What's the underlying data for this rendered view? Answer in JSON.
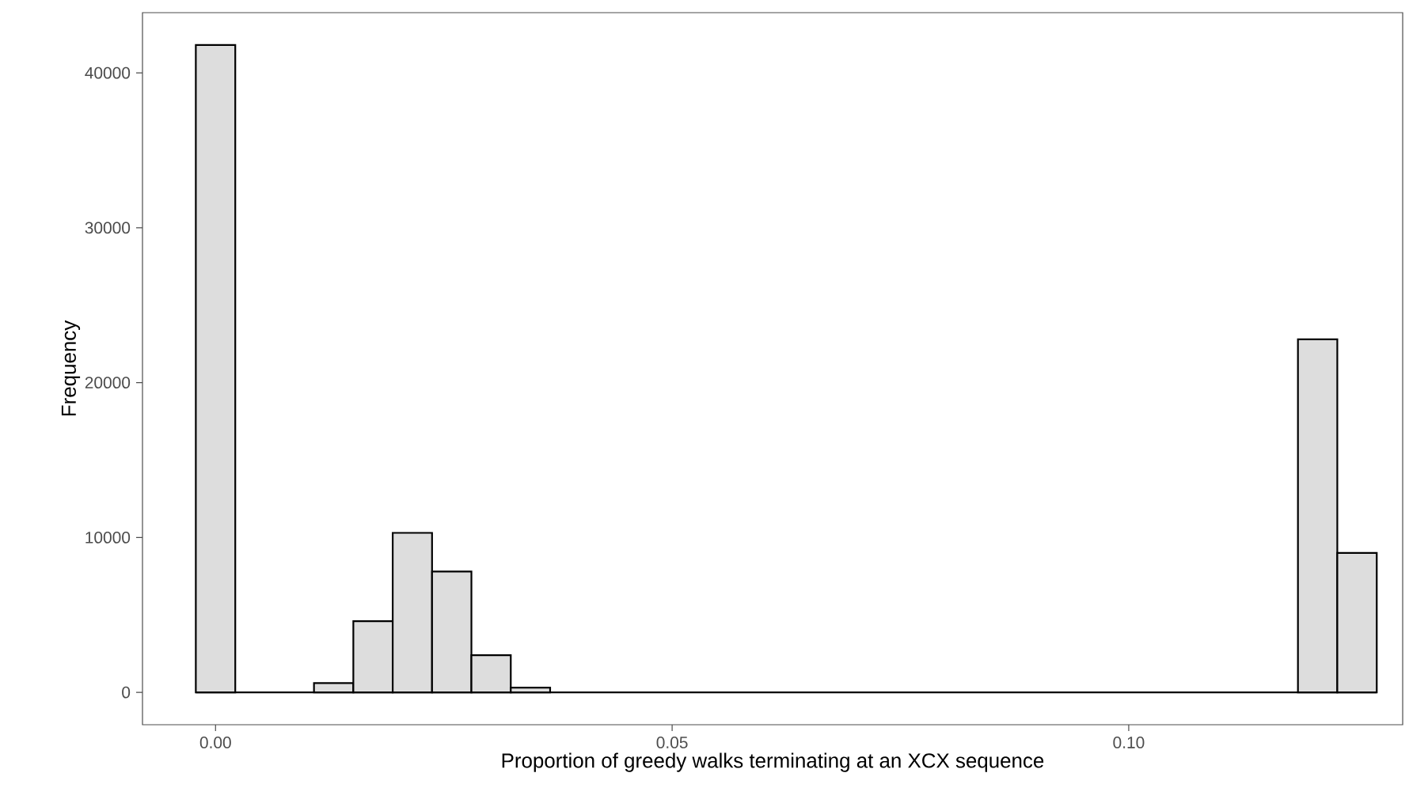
{
  "chart_data": {
    "type": "histogram",
    "xlabel": "Proportion of greedy walks terminating at an XCX sequence",
    "ylabel": "Frequency",
    "bins": [
      -0.00216,
      0.00216,
      0.00647,
      0.01078,
      0.01509,
      0.0194,
      0.02371,
      0.02802,
      0.03233,
      0.03664,
      0.04095,
      0.04526,
      0.04957,
      0.05388,
      0.05819,
      0.0625,
      0.06681,
      0.07112,
      0.07543,
      0.07974,
      0.08405,
      0.08836,
      0.09267,
      0.09698,
      0.10129,
      0.1056,
      0.10991,
      0.11422,
      0.11853,
      0.12284,
      0.12716
    ],
    "values": [
      41800,
      0,
      0,
      600,
      4600,
      10300,
      7800,
      2400,
      300,
      0,
      0,
      0,
      0,
      0,
      0,
      0,
      0,
      0,
      0,
      0,
      0,
      0,
      0,
      0,
      0,
      0,
      0,
      0,
      22800,
      9000
    ],
    "color": "#dddddd",
    "xlim": [
      -0.008,
      0.13
    ],
    "ylim": [
      -2090,
      43890
    ],
    "xticks": [
      {
        "value": 0,
        "label": "0.00"
      },
      {
        "value": 0.05,
        "label": "0.05"
      },
      {
        "value": 0.1,
        "label": "0.10"
      }
    ],
    "yticks": [
      0,
      10000,
      20000,
      30000,
      40000
    ]
  }
}
